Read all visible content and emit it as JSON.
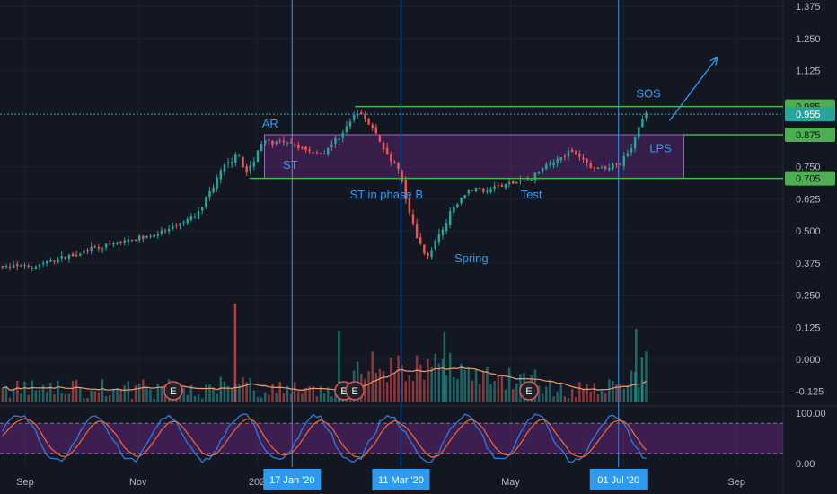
{
  "chart_data": {
    "type": "candlestick",
    "y_axis": {
      "min": -0.175,
      "max": 1.4,
      "ticks": [
        1.375,
        1.25,
        1.125,
        0.75,
        0.625,
        0.5,
        0.375,
        0.25,
        0.125,
        0.0,
        -0.125
      ]
    },
    "x_axis_labels": [
      {
        "label": "Sep",
        "t": 0.03
      },
      {
        "label": "Nov",
        "t": 0.165
      },
      {
        "label": "202",
        "t": 0.307
      },
      {
        "label": "May",
        "t": 0.61
      },
      {
        "label": "Sep",
        "t": 0.88
      }
    ],
    "date_markers": [
      {
        "label": "17 Jan '20",
        "t": 0.349
      },
      {
        "label": "11 Mar '20",
        "t": 0.479
      },
      {
        "label": "01 Jul '20",
        "t": 0.739
      }
    ],
    "price_tags": [
      {
        "label": "0.985",
        "value": 0.985,
        "style": "green"
      },
      {
        "label": "0.955",
        "value": 0.955,
        "style": "teal"
      },
      {
        "label": "0.875",
        "value": 0.875,
        "style": "green"
      },
      {
        "label": "0.705",
        "value": 0.705,
        "style": "green"
      }
    ],
    "annotations": [
      {
        "text": "AR",
        "t": 0.313,
        "value": 0.903
      },
      {
        "text": "ST",
        "t": 0.338,
        "value": 0.742
      },
      {
        "text": "ST in phase B",
        "t": 0.418,
        "value": 0.627
      },
      {
        "text": "Spring",
        "t": 0.543,
        "value": 0.378
      },
      {
        "text": "Test",
        "t": 0.622,
        "value": 0.626
      },
      {
        "text": "LPS",
        "t": 0.776,
        "value": 0.807
      },
      {
        "text": "SOS",
        "t": 0.76,
        "value": 1.021
      }
    ],
    "range_box": {
      "from_t": 0.316,
      "to_t": 0.817,
      "top": 0.875,
      "bottom": 0.705
    },
    "earnings_markers": [
      {
        "label": "E",
        "t": 0.207
      },
      {
        "label": "E",
        "t": 0.411
      },
      {
        "label": "E",
        "t": 0.424
      },
      {
        "label": "E",
        "t": 0.632
      }
    ],
    "oscillator": {
      "ticks": [
        100.0,
        0.0
      ],
      "labels": [
        "100.00",
        "0.00"
      ],
      "upper_band": 80,
      "lower_band": 20
    },
    "last_price": 0.955,
    "colors": {
      "up": "#26a69a",
      "down": "#ef5350",
      "accent": "#2e9bf0",
      "box": "#5b2a86",
      "green_line": "#4caf50",
      "ma": "#f39c6b"
    }
  }
}
